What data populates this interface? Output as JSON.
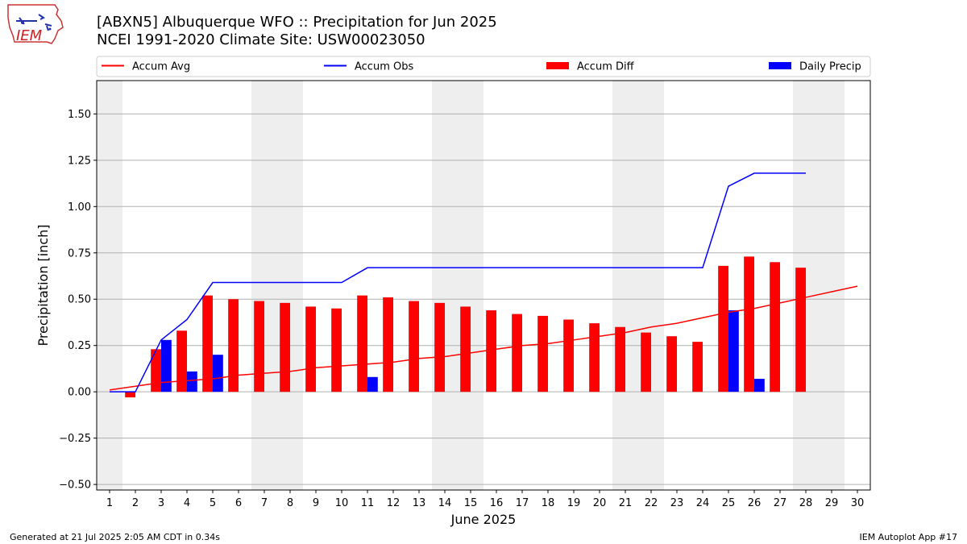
{
  "header": {
    "title_line1": "[ABXN5] Albuquerque WFO :: Precipitation for Jun 2025",
    "title_line2": "NCEI 1991-2020 Climate Site: USW00023050"
  },
  "logo": {
    "text": "IEM"
  },
  "footer": {
    "left": "Generated at 21 Jul 2025 2:05 AM CDT in 0.34s",
    "right": "IEM Autoplot App #17"
  },
  "chart_data": {
    "type": "bar",
    "xlabel": "June 2025",
    "ylabel": "Precipitation [inch]",
    "xlim": [
      0.5,
      30.5
    ],
    "ylim": [
      -0.53,
      1.68
    ],
    "yticks": [
      -0.5,
      -0.25,
      0.0,
      0.25,
      0.5,
      0.75,
      1.0,
      1.25,
      1.5
    ],
    "ytick_labels": [
      "−0.50",
      "−0.25",
      "0.00",
      "0.25",
      "0.50",
      "0.75",
      "1.00",
      "1.25",
      "1.50"
    ],
    "x_ticks": [
      1,
      2,
      3,
      4,
      5,
      6,
      7,
      8,
      9,
      10,
      11,
      12,
      13,
      14,
      15,
      16,
      17,
      18,
      19,
      20,
      21,
      22,
      23,
      24,
      25,
      26,
      27,
      28,
      29,
      30
    ],
    "weekend_days": [
      1,
      7,
      8,
      14,
      15,
      21,
      22,
      28,
      29
    ],
    "grid": "horizontal",
    "legend_placement": "top",
    "colors": {
      "accum_avg": "#ff0000",
      "accum_obs": "#0000ff",
      "accum_diff": "#ff0000",
      "daily_precip": "#0000ff",
      "weekend_band": "#eeeeee",
      "grid": "#b0b0b0"
    },
    "series": [
      {
        "name": "Accum Avg",
        "kind": "line",
        "x": [
          1,
          2,
          3,
          4,
          5,
          6,
          7,
          8,
          9,
          10,
          11,
          12,
          13,
          14,
          15,
          16,
          17,
          18,
          19,
          20,
          21,
          22,
          23,
          24,
          25,
          26,
          27,
          28,
          29,
          30
        ],
        "values": [
          0.01,
          0.03,
          0.05,
          0.06,
          0.07,
          0.09,
          0.1,
          0.11,
          0.13,
          0.14,
          0.15,
          0.16,
          0.18,
          0.19,
          0.21,
          0.23,
          0.25,
          0.26,
          0.28,
          0.3,
          0.32,
          0.35,
          0.37,
          0.4,
          0.43,
          0.45,
          0.48,
          0.51,
          0.54,
          0.57
        ]
      },
      {
        "name": "Accum Obs",
        "kind": "line",
        "x": [
          1,
          2,
          3,
          4,
          5,
          6,
          7,
          8,
          9,
          10,
          11,
          12,
          13,
          14,
          15,
          16,
          17,
          18,
          19,
          20,
          21,
          22,
          23,
          24,
          25,
          26,
          27,
          28
        ],
        "values": [
          0.0,
          0.0,
          0.28,
          0.39,
          0.59,
          0.59,
          0.59,
          0.59,
          0.59,
          0.59,
          0.67,
          0.67,
          0.67,
          0.67,
          0.67,
          0.67,
          0.67,
          0.67,
          0.67,
          0.67,
          0.67,
          0.67,
          0.67,
          0.67,
          1.11,
          1.18,
          1.18,
          1.18
        ]
      },
      {
        "name": "Accum Diff",
        "kind": "bar",
        "x": [
          1,
          2,
          3,
          4,
          5,
          6,
          7,
          8,
          9,
          10,
          11,
          12,
          13,
          14,
          15,
          16,
          17,
          18,
          19,
          20,
          21,
          22,
          23,
          24,
          25,
          26,
          27,
          28
        ],
        "values": [
          0.0,
          -0.03,
          0.23,
          0.33,
          0.52,
          0.5,
          0.49,
          0.48,
          0.46,
          0.45,
          0.52,
          0.51,
          0.49,
          0.48,
          0.46,
          0.44,
          0.42,
          0.41,
          0.39,
          0.37,
          0.35,
          0.32,
          0.3,
          0.27,
          0.68,
          0.73,
          0.7,
          0.67
        ]
      },
      {
        "name": "Daily Precip",
        "kind": "bar",
        "x": [
          1,
          2,
          3,
          4,
          5,
          6,
          7,
          8,
          9,
          10,
          11,
          12,
          13,
          14,
          15,
          16,
          17,
          18,
          19,
          20,
          21,
          22,
          23,
          24,
          25,
          26,
          27,
          28
        ],
        "values": [
          0,
          0,
          0.28,
          0.11,
          0.2,
          0,
          0,
          0,
          0,
          0,
          0.08,
          0,
          0,
          0,
          0,
          0,
          0,
          0,
          0,
          0,
          0,
          0,
          0,
          0,
          0.44,
          0.07,
          0,
          0
        ]
      }
    ]
  }
}
